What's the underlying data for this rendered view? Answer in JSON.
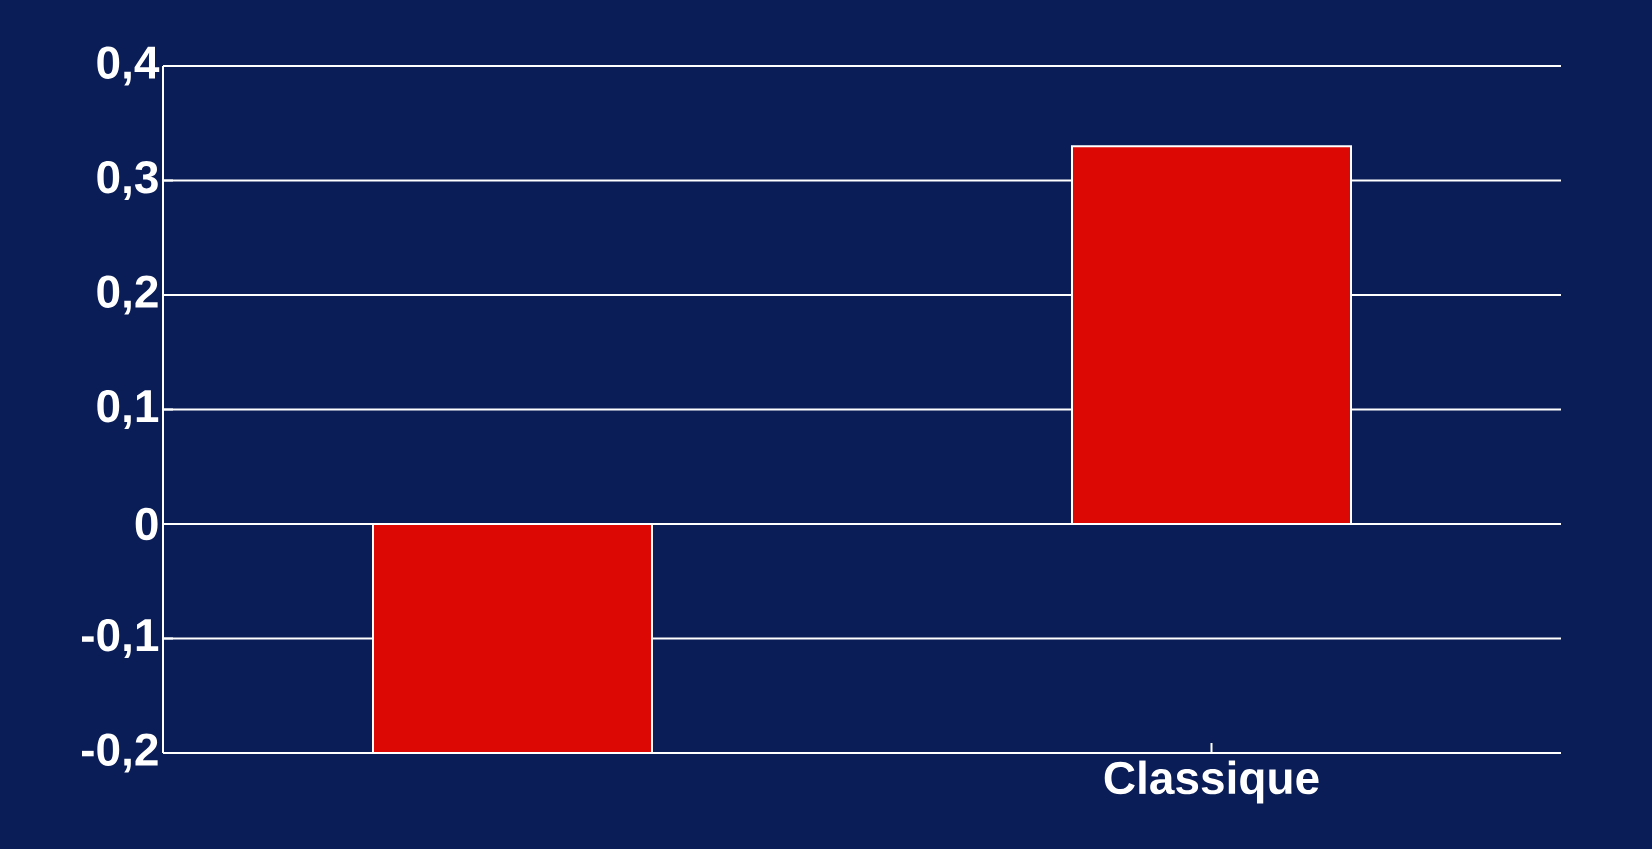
{
  "chart_data": {
    "type": "bar",
    "categories": [
      null,
      "Classique"
    ],
    "values": [
      -0.2,
      0.33
    ],
    "color": "#dc0804",
    "ylim": [
      -0.2,
      0.4
    ],
    "yticks": [
      {
        "value": -0.2,
        "label": "-0,2"
      },
      {
        "value": -0.1,
        "label": "-0,1"
      },
      0,
      {
        "value": 0.1,
        "label": "0,1"
      },
      {
        "value": 0.2,
        "label": "0,2"
      },
      {
        "value": 0.3,
        "label": "0,3"
      },
      {
        "value": 0.4,
        "label": "0,4"
      }
    ],
    "grid": "y"
  }
}
